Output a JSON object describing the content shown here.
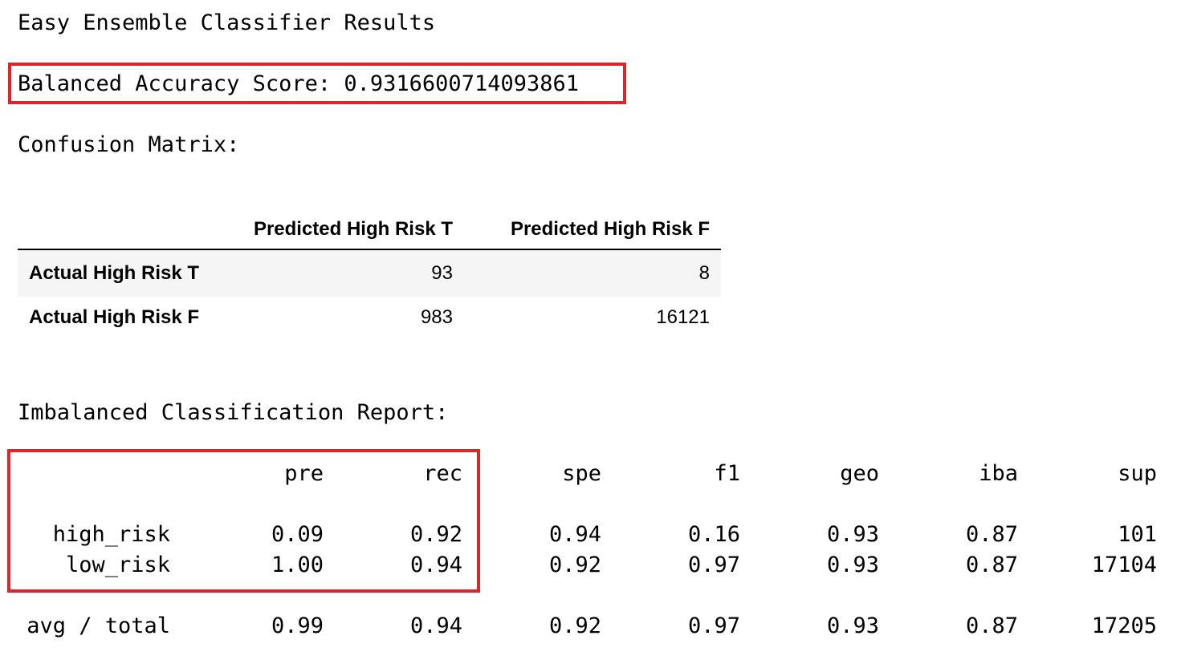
{
  "title": "Easy Ensemble Classifier Results",
  "balanced_accuracy": {
    "label": "Balanced Accuracy Score: ",
    "value": "0.9316600714093861"
  },
  "confusion_matrix": {
    "title": "Confusion Matrix:",
    "columns": [
      "Predicted High Risk T",
      "Predicted High Risk F"
    ],
    "rows": [
      {
        "label": "Actual High Risk T",
        "values": [
          "93",
          "8"
        ]
      },
      {
        "label": "Actual High Risk F",
        "values": [
          "983",
          "16121"
        ]
      }
    ]
  },
  "report": {
    "title": "Imbalanced Classification Report:",
    "headers": [
      "pre",
      "rec",
      "spe",
      "f1",
      "geo",
      "iba",
      "sup"
    ],
    "rows": [
      {
        "label": "high_risk",
        "values": [
          "0.09",
          "0.92",
          "0.94",
          "0.16",
          "0.93",
          "0.87",
          "101"
        ]
      },
      {
        "label": "low_risk",
        "values": [
          "1.00",
          "0.94",
          "0.92",
          "0.97",
          "0.93",
          "0.87",
          "17104"
        ]
      },
      {
        "label": "avg / total",
        "values": [
          "0.99",
          "0.94",
          "0.92",
          "0.97",
          "0.93",
          "0.87",
          "17205"
        ]
      }
    ]
  },
  "highlight_color": "#e0242c"
}
